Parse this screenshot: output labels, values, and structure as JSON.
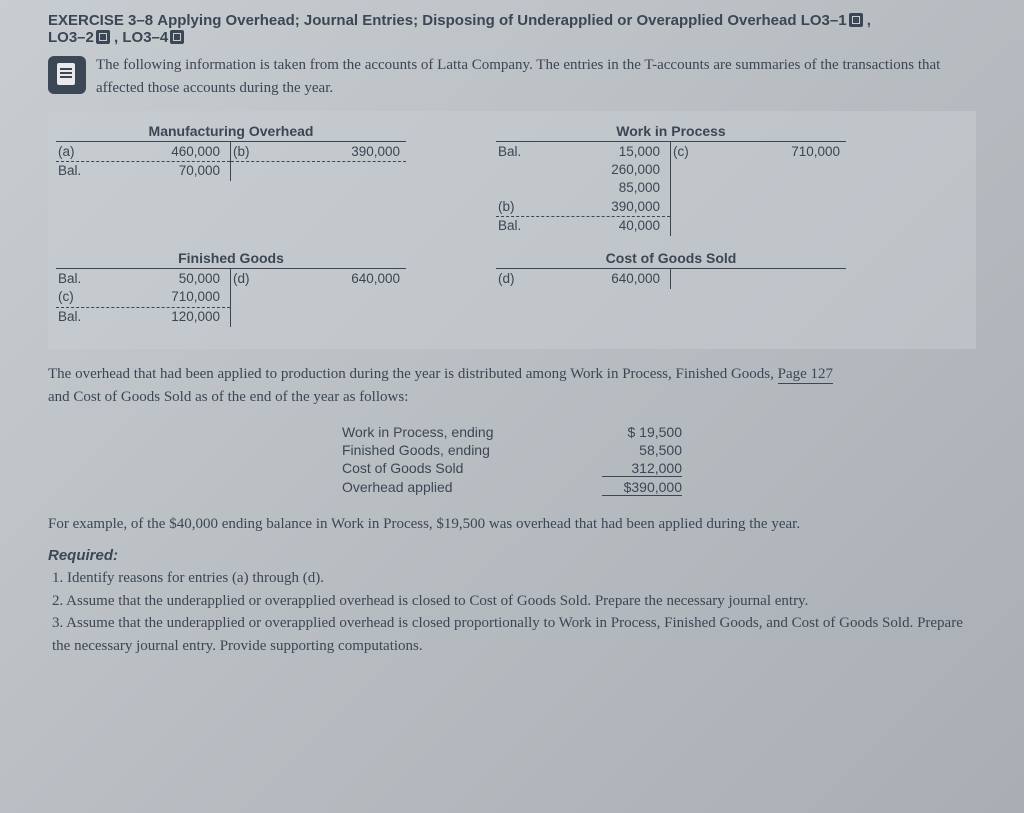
{
  "header": {
    "exercise_label": "EXERCISE 3–8",
    "title": "Applying Overhead; Journal Entries; Disposing of Underapplied or Overapplied Overhead",
    "lo_links": [
      "LO3–1",
      "LO3–2",
      "LO3–4"
    ]
  },
  "intro": "The following information is taken from the accounts of Latta Company. The entries in the T-accounts are summaries of the transactions that affected those accounts during the year.",
  "t_accounts": {
    "mfg_overhead": {
      "title": "Manufacturing Overhead",
      "left": [
        {
          "label": "(a)",
          "value": "460,000",
          "dashed": true
        },
        {
          "label": "Bal.",
          "value": "70,000"
        }
      ],
      "right": [
        {
          "label": "(b)",
          "value": "390,000",
          "dashed": true
        }
      ]
    },
    "wip": {
      "title": "Work in Process",
      "left": [
        {
          "label": "Bal.",
          "value": "15,000"
        },
        {
          "label": "",
          "value": "260,000"
        },
        {
          "label": "",
          "value": "85,000"
        },
        {
          "label": "(b)",
          "value": "390,000",
          "dashed": true
        },
        {
          "label": "Bal.",
          "value": "40,000"
        }
      ],
      "right": [
        {
          "label": "(c)",
          "value": "710,000"
        }
      ]
    },
    "finished_goods": {
      "title": "Finished Goods",
      "left": [
        {
          "label": "Bal.",
          "value": "50,000"
        },
        {
          "label": "(c)",
          "value": "710,000",
          "dashed": true
        },
        {
          "label": "Bal.",
          "value": "120,000"
        }
      ],
      "right": [
        {
          "label": "(d)",
          "value": "640,000"
        }
      ]
    },
    "cogs": {
      "title": "Cost of Goods Sold",
      "left": [
        {
          "label": "(d)",
          "value": "640,000"
        }
      ],
      "right": []
    }
  },
  "distribution_text": {
    "part1": "The overhead that had been applied to production during the year is distributed among Work in Process, Finished Goods, ",
    "page_ref": "Page 127",
    "part2": "and Cost of Goods Sold as of the end of the year as follows:"
  },
  "distribution_table": [
    {
      "label": "Work in Process, ending",
      "value": "$  19,500"
    },
    {
      "label": "Finished Goods, ending",
      "value": "58,500"
    },
    {
      "label": "Cost of Goods Sold",
      "value": "312,000",
      "underline": true
    },
    {
      "label": "Overhead applied",
      "value": "$390,000",
      "underline": true
    }
  ],
  "example_text": "For example, of the $40,000 ending balance in Work in Process, $19,500 was overhead that had been applied during the year.",
  "required": {
    "header": "Required:",
    "items": [
      "1. Identify reasons for entries (a) through (d).",
      "2. Assume that the underapplied or overapplied overhead is closed to Cost of Goods Sold. Prepare the necessary journal entry.",
      "3. Assume that the underapplied or overapplied overhead is closed proportionally to Work in Process, Finished Goods, and Cost of Goods Sold. Prepare the necessary journal entry. Provide supporting computations."
    ]
  },
  "colors": {
    "text": "#3b4754",
    "bg_start": "#c8cdd1",
    "bg_end": "#a8aeb4"
  }
}
